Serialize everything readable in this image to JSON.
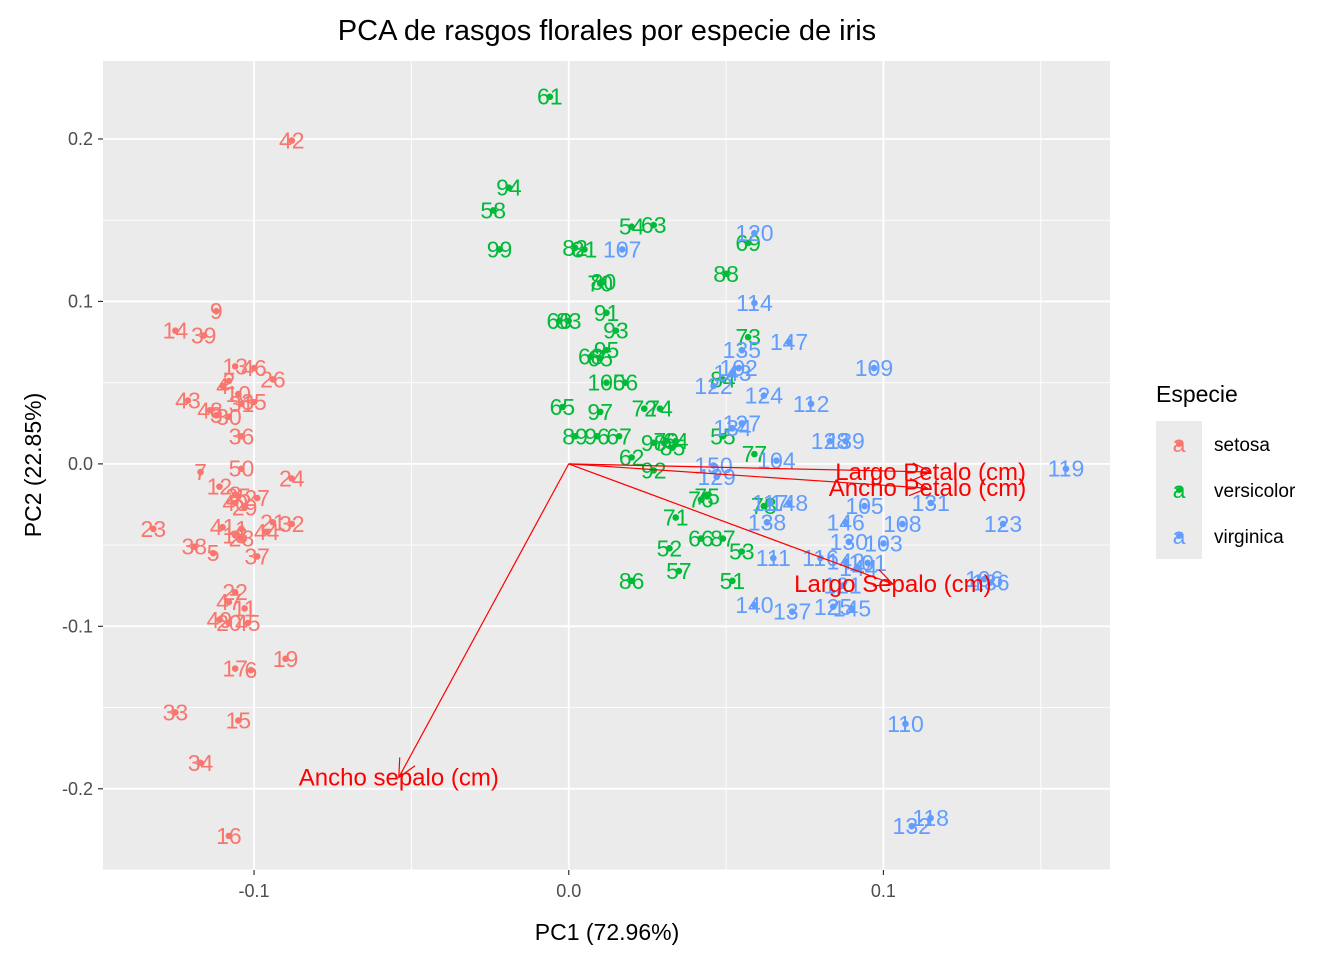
{
  "chart_data": {
    "type": "scatter",
    "title": "PCA de rasgos florales por especie de iris",
    "xlabel": "PC1 (72.96%)",
    "ylabel": "PC2 (22.85%)",
    "xlim": [
      -0.148,
      0.172
    ],
    "ylim": [
      -0.25,
      0.248
    ],
    "x_ticks": [
      -0.1,
      0.0,
      0.1
    ],
    "x_tick_labels": [
      "-0.1",
      "0.0",
      "0.1"
    ],
    "y_ticks": [
      -0.2,
      -0.1,
      0.0,
      0.1,
      0.2
    ],
    "y_tick_labels": [
      "-0.2",
      "-0.1",
      "0.0",
      "0.1",
      "0.2"
    ],
    "grid": true,
    "legend": {
      "title": "Especie",
      "placement": "right",
      "glyph": "a",
      "items": [
        {
          "label": "setosa",
          "color": "#F8766D"
        },
        {
          "label": "versicolor",
          "color": "#00BA38"
        },
        {
          "label": "virginica",
          "color": "#619CFF"
        }
      ]
    },
    "arrow_color": "#ff0000",
    "arrows": [
      {
        "label": "Largo Petalo (cm)",
        "x": 0.115,
        "y": -0.005
      },
      {
        "label": "Ancho Petalo (cm)",
        "x": 0.114,
        "y": -0.015
      },
      {
        "label": "Largo Sepalo (cm)",
        "x": 0.103,
        "y": -0.074
      },
      {
        "label": "Ancho sepalo (cm)",
        "x": -0.054,
        "y": -0.193
      }
    ],
    "series": [
      {
        "name": "setosa",
        "color": "#F8766D",
        "points": [
          {
            "label": "42",
            "x": -0.088,
            "y": 0.199
          },
          {
            "label": "9",
            "x": -0.112,
            "y": 0.094
          },
          {
            "label": "14",
            "x": -0.125,
            "y": 0.082
          },
          {
            "label": "39",
            "x": -0.116,
            "y": 0.079
          },
          {
            "label": "13",
            "x": -0.106,
            "y": 0.06
          },
          {
            "label": "46",
            "x": -0.1,
            "y": 0.059
          },
          {
            "label": "26",
            "x": -0.094,
            "y": 0.052
          },
          {
            "label": "2",
            "x": -0.108,
            "y": 0.051
          },
          {
            "label": "4",
            "x": -0.11,
            "y": 0.048
          },
          {
            "label": "10",
            "x": -0.105,
            "y": 0.043
          },
          {
            "label": "35",
            "x": -0.1,
            "y": 0.038
          },
          {
            "label": "31",
            "x": -0.104,
            "y": 0.037
          },
          {
            "label": "43",
            "x": -0.121,
            "y": 0.039
          },
          {
            "label": "48",
            "x": -0.114,
            "y": 0.033
          },
          {
            "label": "3",
            "x": -0.112,
            "y": 0.03
          },
          {
            "label": "30",
            "x": -0.108,
            "y": 0.029
          },
          {
            "label": "36",
            "x": -0.104,
            "y": 0.017
          },
          {
            "label": "50",
            "x": -0.104,
            "y": -0.003
          },
          {
            "label": "7",
            "x": -0.117,
            "y": -0.005
          },
          {
            "label": "24",
            "x": -0.088,
            "y": -0.009
          },
          {
            "label": "12",
            "x": -0.111,
            "y": -0.014
          },
          {
            "label": "8",
            "x": -0.106,
            "y": -0.019
          },
          {
            "label": "25",
            "x": -0.105,
            "y": -0.02
          },
          {
            "label": "27",
            "x": -0.099,
            "y": -0.021
          },
          {
            "label": "40",
            "x": -0.106,
            "y": -0.024
          },
          {
            "label": "29",
            "x": -0.103,
            "y": -0.027
          },
          {
            "label": "21",
            "x": -0.094,
            "y": -0.036
          },
          {
            "label": "32",
            "x": -0.088,
            "y": -0.037
          },
          {
            "label": "23",
            "x": -0.132,
            "y": -0.04
          },
          {
            "label": "44",
            "x": -0.096,
            "y": -0.042
          },
          {
            "label": "41",
            "x": -0.11,
            "y": -0.039
          },
          {
            "label": "1",
            "x": -0.104,
            "y": -0.04
          },
          {
            "label": "18",
            "x": -0.106,
            "y": -0.044
          },
          {
            "label": "28",
            "x": -0.104,
            "y": -0.046
          },
          {
            "label": "38",
            "x": -0.119,
            "y": -0.051
          },
          {
            "label": "5",
            "x": -0.113,
            "y": -0.055
          },
          {
            "label": "37",
            "x": -0.099,
            "y": -0.057
          },
          {
            "label": "22",
            "x": -0.106,
            "y": -0.079
          },
          {
            "label": "47",
            "x": -0.108,
            "y": -0.085
          },
          {
            "label": "11",
            "x": -0.103,
            "y": -0.089
          },
          {
            "label": "49",
            "x": -0.111,
            "y": -0.096
          },
          {
            "label": "20",
            "x": -0.108,
            "y": -0.098
          },
          {
            "label": "45",
            "x": -0.102,
            "y": -0.098
          },
          {
            "label": "19",
            "x": -0.09,
            "y": -0.12
          },
          {
            "label": "17",
            "x": -0.106,
            "y": -0.126
          },
          {
            "label": "6",
            "x": -0.101,
            "y": -0.127
          },
          {
            "label": "33",
            "x": -0.125,
            "y": -0.153
          },
          {
            "label": "15",
            "x": -0.105,
            "y": -0.158
          },
          {
            "label": "34",
            "x": -0.117,
            "y": -0.184
          },
          {
            "label": "16",
            "x": -0.108,
            "y": -0.229
          }
        ]
      },
      {
        "name": "versicolor",
        "color": "#00BA38",
        "points": [
          {
            "label": "61",
            "x": -0.006,
            "y": 0.226
          },
          {
            "label": "94",
            "x": -0.019,
            "y": 0.17
          },
          {
            "label": "58",
            "x": -0.024,
            "y": 0.156
          },
          {
            "label": "54",
            "x": 0.02,
            "y": 0.146
          },
          {
            "label": "63",
            "x": 0.027,
            "y": 0.147
          },
          {
            "label": "69",
            "x": 0.057,
            "y": 0.136
          },
          {
            "label": "99",
            "x": -0.022,
            "y": 0.132
          },
          {
            "label": "82",
            "x": 0.002,
            "y": 0.133
          },
          {
            "label": "81",
            "x": 0.005,
            "y": 0.132
          },
          {
            "label": "88",
            "x": 0.05,
            "y": 0.117
          },
          {
            "label": "70",
            "x": 0.01,
            "y": 0.111
          },
          {
            "label": "80",
            "x": 0.011,
            "y": 0.112
          },
          {
            "label": "91",
            "x": 0.012,
            "y": 0.093
          },
          {
            "label": "83",
            "x": 0.0,
            "y": 0.088
          },
          {
            "label": "60",
            "x": -0.003,
            "y": 0.088
          },
          {
            "label": "93",
            "x": 0.015,
            "y": 0.082
          },
          {
            "label": "73",
            "x": 0.057,
            "y": 0.078
          },
          {
            "label": "95",
            "x": 0.012,
            "y": 0.07
          },
          {
            "label": "68",
            "x": 0.007,
            "y": 0.066
          },
          {
            "label": "65",
            "x": 0.01,
            "y": 0.065
          },
          {
            "label": "84",
            "x": 0.049,
            "y": 0.052
          },
          {
            "label": "100",
            "x": 0.012,
            "y": 0.05
          },
          {
            "label": "56",
            "x": 0.018,
            "y": 0.05
          },
          {
            "label": "65b",
            "display": "65",
            "x": -0.002,
            "y": 0.035
          },
          {
            "label": "97",
            "x": 0.01,
            "y": 0.032
          },
          {
            "label": "72",
            "x": 0.024,
            "y": 0.034
          },
          {
            "label": "74",
            "x": 0.029,
            "y": 0.034
          },
          {
            "label": "55",
            "x": 0.049,
            "y": 0.017
          },
          {
            "label": "89",
            "x": 0.002,
            "y": 0.017
          },
          {
            "label": "96",
            "x": 0.009,
            "y": 0.017
          },
          {
            "label": "67",
            "x": 0.016,
            "y": 0.017
          },
          {
            "label": "79",
            "x": 0.031,
            "y": 0.014
          },
          {
            "label": "98",
            "x": 0.027,
            "y": 0.013
          },
          {
            "label": "64",
            "x": 0.034,
            "y": 0.014
          },
          {
            "label": "85",
            "x": 0.033,
            "y": 0.01
          },
          {
            "label": "77",
            "x": 0.059,
            "y": 0.006
          },
          {
            "label": "62",
            "x": 0.02,
            "y": 0.004
          },
          {
            "label": "92",
            "x": 0.027,
            "y": -0.004
          },
          {
            "label": "75",
            "x": 0.044,
            "y": -0.02
          },
          {
            "label": "76",
            "x": 0.042,
            "y": -0.022
          },
          {
            "label": "78",
            "x": 0.062,
            "y": -0.026
          },
          {
            "label": "71",
            "x": 0.034,
            "y": -0.033
          },
          {
            "label": "66",
            "x": 0.042,
            "y": -0.046
          },
          {
            "label": "87",
            "x": 0.049,
            "y": -0.046
          },
          {
            "label": "52",
            "x": 0.032,
            "y": -0.052
          },
          {
            "label": "53",
            "x": 0.055,
            "y": -0.054
          },
          {
            "label": "57",
            "x": 0.035,
            "y": -0.066
          },
          {
            "label": "86",
            "x": 0.02,
            "y": -0.072
          },
          {
            "label": "51",
            "x": 0.052,
            "y": -0.072
          }
        ]
      },
      {
        "name": "virginica",
        "color": "#619CFF",
        "points": [
          {
            "label": "120",
            "x": 0.059,
            "y": 0.142
          },
          {
            "label": "107",
            "x": 0.017,
            "y": 0.132
          },
          {
            "label": "114",
            "x": 0.059,
            "y": 0.099
          },
          {
            "label": "147",
            "x": 0.07,
            "y": 0.075
          },
          {
            "label": "135",
            "x": 0.055,
            "y": 0.07
          },
          {
            "label": "109",
            "x": 0.097,
            "y": 0.059
          },
          {
            "label": "102",
            "x": 0.054,
            "y": 0.059
          },
          {
            "label": "143",
            "x": 0.052,
            "y": 0.056
          },
          {
            "label": "122",
            "x": 0.046,
            "y": 0.048
          },
          {
            "label": "124",
            "x": 0.062,
            "y": 0.042
          },
          {
            "label": "112",
            "x": 0.077,
            "y": 0.037
          },
          {
            "label": "127",
            "x": 0.055,
            "y": 0.025
          },
          {
            "label": "134",
            "x": 0.052,
            "y": 0.022
          },
          {
            "label": "128",
            "x": 0.083,
            "y": 0.014
          },
          {
            "label": "139",
            "x": 0.088,
            "y": 0.014
          },
          {
            "label": "104",
            "x": 0.066,
            "y": 0.002
          },
          {
            "label": "150",
            "x": 0.046,
            "y": -0.001
          },
          {
            "label": "129",
            "x": 0.047,
            "y": -0.008
          },
          {
            "label": "119",
            "x": 0.158,
            "y": -0.003
          },
          {
            "label": "131",
            "x": 0.115,
            "y": -0.024
          },
          {
            "label": "117",
            "x": 0.064,
            "y": -0.024
          },
          {
            "label": "148",
            "x": 0.07,
            "y": -0.024
          },
          {
            "label": "105",
            "x": 0.094,
            "y": -0.026
          },
          {
            "label": "108",
            "x": 0.106,
            "y": -0.037
          },
          {
            "label": "123",
            "x": 0.138,
            "y": -0.037
          },
          {
            "label": "138",
            "x": 0.063,
            "y": -0.036
          },
          {
            "label": "146",
            "x": 0.088,
            "y": -0.036
          },
          {
            "label": "130",
            "x": 0.089,
            "y": -0.048
          },
          {
            "label": "103",
            "x": 0.1,
            "y": -0.049
          },
          {
            "label": "111",
            "x": 0.065,
            "y": -0.058
          },
          {
            "label": "116",
            "x": 0.08,
            "y": -0.058
          },
          {
            "label": "142",
            "x": 0.088,
            "y": -0.06
          },
          {
            "label": "101",
            "x": 0.095,
            "y": -0.061
          },
          {
            "label": "144",
            "x": 0.092,
            "y": -0.064
          },
          {
            "label": "106",
            "x": 0.132,
            "y": -0.071
          },
          {
            "label": "136",
            "x": 0.134,
            "y": -0.073
          },
          {
            "label": "121",
            "x": 0.087,
            "y": -0.075
          },
          {
            "label": "140",
            "x": 0.059,
            "y": -0.087
          },
          {
            "label": "125",
            "x": 0.084,
            "y": -0.088
          },
          {
            "label": "145",
            "x": 0.09,
            "y": -0.089
          },
          {
            "label": "137",
            "x": 0.071,
            "y": -0.091
          },
          {
            "label": "110",
            "x": 0.107,
            "y": -0.16
          },
          {
            "label": "118",
            "x": 0.115,
            "y": -0.218
          },
          {
            "label": "132",
            "x": 0.109,
            "y": -0.223
          }
        ]
      }
    ]
  }
}
